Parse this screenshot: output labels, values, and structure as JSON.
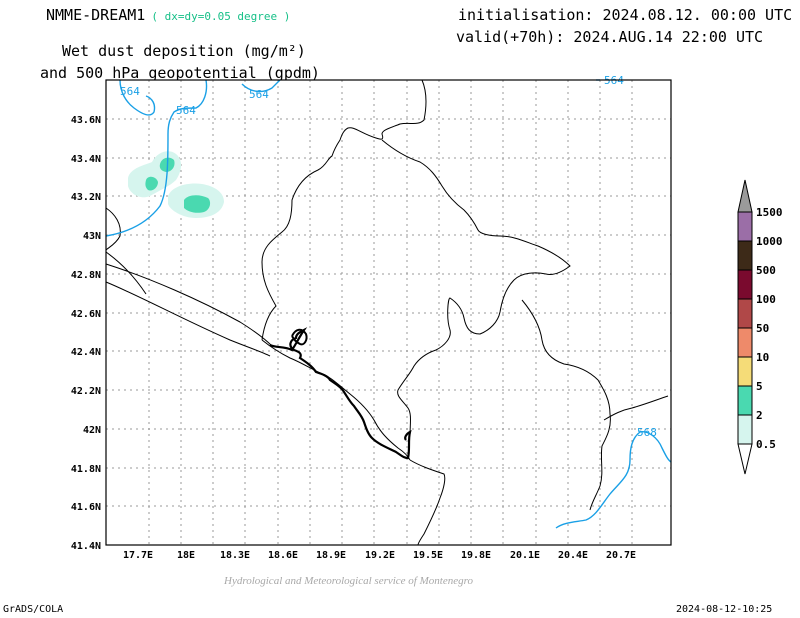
{
  "header": {
    "model": "NMME-DREAM1",
    "resolution": "( dx=dy=0.05 degree )",
    "title_line1": "Wet dust deposition (mg/m²)",
    "title_line2": "and 500 hPa geopotential (gpdm)",
    "initialisation": "initialisation: 2024.08.12. 00:00 UTC",
    "valid": "valid(+70h): 2024.AUG.14 22:00 UTC"
  },
  "map": {
    "lon_range": [
      17.5,
      20.95
    ],
    "lat_range": [
      41.4,
      43.8
    ],
    "lon_ticks": [
      "17.7E",
      "18E",
      "18.3E",
      "18.6E",
      "18.9E",
      "19.2E",
      "19.5E",
      "19.8E",
      "20.1E",
      "20.4E",
      "20.7E"
    ],
    "lat_ticks": [
      "43.6N",
      "43.4N",
      "43.2N",
      "43N",
      "42.8N",
      "42.6N",
      "42.4N",
      "42.2N",
      "42N",
      "41.8N",
      "41.6N",
      "41.4N"
    ],
    "contour_labels": [
      "564",
      "564",
      "564",
      "564",
      "568"
    ],
    "contour_color": "#1aa0e6"
  },
  "legend": {
    "levels": [
      "1500",
      "1000",
      "500",
      "100",
      "50",
      "10",
      "5",
      "2",
      "0.5"
    ],
    "colors": [
      "#9a9a9a",
      "#9b6ea7",
      "#3d2a18",
      "#7a0a2e",
      "#b04848",
      "#ee8a6a",
      "#f5dc78",
      "#4ad9b0",
      "#d6f5ee",
      "#ffffff"
    ]
  },
  "footer": {
    "credit": "Hydrological and Meteorological service of Montenegro",
    "software": "GrADS/COLA",
    "timestamp": "2024-08-12-10:25"
  }
}
